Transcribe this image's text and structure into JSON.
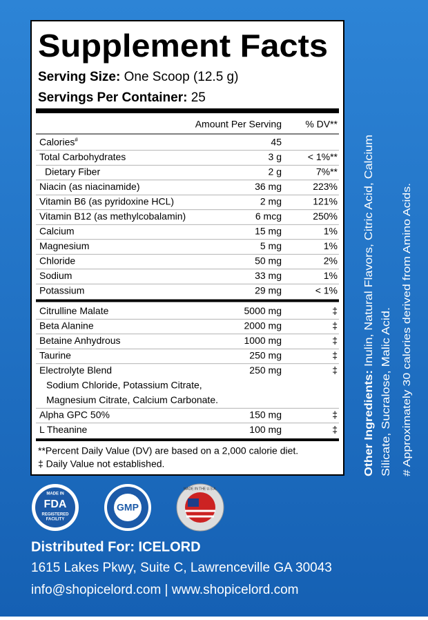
{
  "title": "Supplement Facts",
  "serving_size": {
    "label": "Serving Size:",
    "value": "One Scoop (12.5 g)"
  },
  "servings": {
    "label": "Servings Per Container:",
    "value": "25"
  },
  "columns": {
    "amount": "Amount Per Serving",
    "dv": "% DV**"
  },
  "rows": [
    {
      "name": "Calories",
      "sup": "#",
      "amount": "45"
    },
    {
      "name": "Total Carbohydrates",
      "amount": "3 g",
      "dv": "< 1%**"
    },
    {
      "name": "Dietary Fiber",
      "amount": "2 g",
      "dv": "7%**"
    },
    {
      "name": "Niacin (as niacinamide)",
      "amount": "36 mg",
      "dv": "223%"
    },
    {
      "name": "Vitamin B6 (as pyridoxine HCL)",
      "amount": "2 mg",
      "dv": "121%"
    },
    {
      "name": "Vitamin B12 (as methylcobalamin)",
      "amount": "6 mcg",
      "dv": "250%"
    },
    {
      "name": "Calcium",
      "amount": "15 mg",
      "dv": "1%"
    },
    {
      "name": "Magnesium",
      "amount": "5 mg",
      "dv": "1%"
    },
    {
      "name": "Chloride",
      "amount": "50 mg",
      "dv": "2%"
    },
    {
      "name": "Sodium",
      "amount": "33 mg",
      "dv": "1%"
    },
    {
      "name": "Potassium",
      "amount": "29 mg",
      "dv": "< 1%"
    }
  ],
  "blend_rows": [
    {
      "name": "Citrulline Malate",
      "amount": "5000 mg",
      "dv": "‡"
    },
    {
      "name": "Beta Alanine",
      "amount": "2000 mg",
      "dv": "‡"
    },
    {
      "name": "Betaine Anhydrous",
      "amount": "1000 mg",
      "dv": "‡"
    },
    {
      "name": "Taurine",
      "amount": "250 mg",
      "dv": "‡"
    },
    {
      "name": "Electrolyte Blend",
      "amount": "250 mg",
      "dv": "‡",
      "sub": [
        "Sodium Chloride, Potassium Citrate,",
        "Magnesium Citrate, Calcium Carbonate."
      ]
    },
    {
      "name": "Alpha GPC 50%",
      "amount": "150 mg",
      "dv": "‡"
    },
    {
      "name": "L Theanine",
      "amount": "100 mg",
      "dv": "‡"
    }
  ],
  "footnotes": [
    "**Percent Daily Value (DV) are based on a 2,000 calorie diet.",
    "‡ Daily Value not established."
  ],
  "other_ingredients": {
    "label": "Other Ingredients:",
    "lines": [
      "Inulin, Natural Flavors, Citric Acid, Calcium",
      "Silicate,  Sucralose, Malic Acid."
    ]
  },
  "amino_note": "# Approximately 30 calories derived from Amino Acids.",
  "badges": {
    "fda": [
      "MADE IN",
      "FDA",
      "REGISTERED",
      "FACILITY"
    ],
    "gmp": "GMP",
    "usa": "MADE IN THE U.S.A."
  },
  "distributor": {
    "title": "Distributed For: ICELORD",
    "address": "1615 Lakes Pkwy, Suite C, Lawrenceville GA 30043",
    "contact": "info@shopicelord.com | www.shopicelord.com"
  }
}
